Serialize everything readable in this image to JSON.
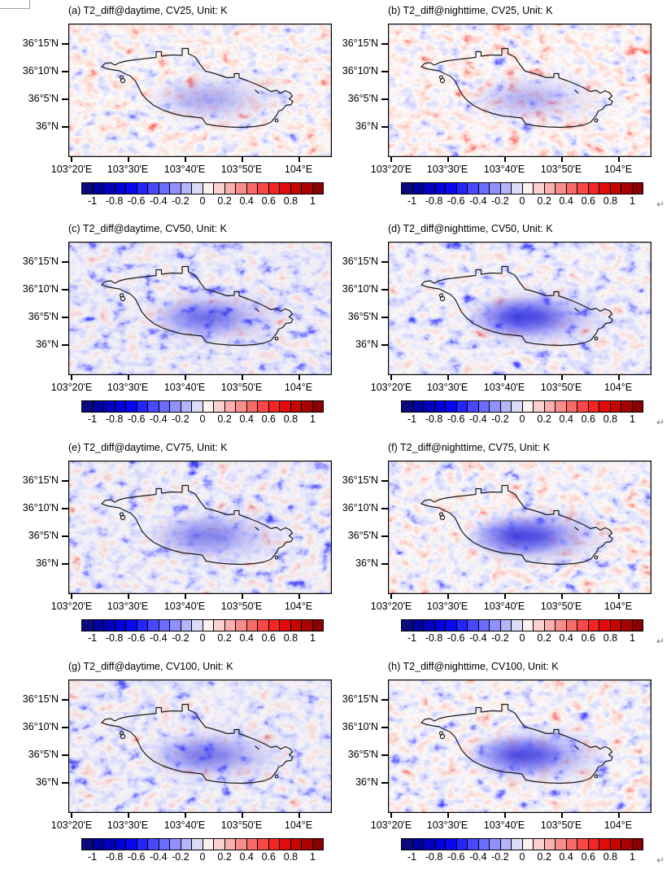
{
  "figure": {
    "panels": [
      {
        "id": "a",
        "title": "(a) T2_diff@daytime, CV25, Unit: K"
      },
      {
        "id": "b",
        "title": "(b) T2_diff@nighttime, CV25, Unit: K"
      },
      {
        "id": "c",
        "title": "(c) T2_diff@daytime, CV50, Unit: K"
      },
      {
        "id": "d",
        "title": "(d) T2_diff@nighttime, CV50, Unit: K"
      },
      {
        "id": "e",
        "title": "(e) T2_diff@daytime, CV75, Unit: K"
      },
      {
        "id": "f",
        "title": "(f) T2_diff@nighttime, CV75, Unit: K"
      },
      {
        "id": "g",
        "title": "(g) T2_diff@daytime, CV100, Unit: K"
      },
      {
        "id": "h",
        "title": "(h) T2_diff@nighttime, CV100, Unit: K"
      }
    ],
    "axes": {
      "y_ticks": [
        "36°15'N",
        "36°10'N",
        "36°5'N",
        "36°N"
      ],
      "x_ticks": [
        "103°20'E",
        "103°30'E",
        "103°40'E",
        "103°50'E",
        "104°E"
      ]
    },
    "colorbar": {
      "ticks": [
        "-1",
        "-0.8",
        "-0.6",
        "-0.4",
        "-0.2",
        "0",
        "0.2",
        "0.4",
        "0.6",
        "0.8",
        "1"
      ],
      "colors": [
        "#0a0a7d",
        "#0000a1",
        "#0000bd",
        "#0000d8",
        "#0707f2",
        "#2424ff",
        "#4848ff",
        "#6c6cff",
        "#9090ff",
        "#b5b5fa",
        "#dbdbf7",
        "#fdf0ee",
        "#fbd1cf",
        "#f9b0ae",
        "#f88e8c",
        "#f96b69",
        "#fa4846",
        "#f42523",
        "#e20b07",
        "#c60400",
        "#a80300",
        "#8b0000"
      ]
    },
    "marks": {
      "return_mark": "↵"
    },
    "colors": {
      "boundary": "#1a1a1a",
      "frame": "#000000",
      "return_mark_color": "#808080",
      "artifact_border": "#a0a0a0"
    }
  },
  "chart_data": {
    "type": "heatmap",
    "layout": "4 rows x 2 columns of filled-contour temperature-difference maps, each with its own horizontal colorbar",
    "x_axis": {
      "tick_labels": [
        "103°20'E",
        "103°30'E",
        "103°40'E",
        "103°50'E",
        "104°E"
      ],
      "range_deg_east": [
        103.33,
        104.1
      ]
    },
    "y_axis": {
      "tick_labels": [
        "36°15'N",
        "36°10'N",
        "36°5'N",
        "36°N"
      ],
      "range_deg_north": [
        35.92,
        36.31
      ]
    },
    "colorbar": {
      "unit": "K",
      "tick_values": [
        -1,
        -0.8,
        -0.6,
        -0.4,
        -0.2,
        0,
        0.2,
        0.4,
        0.6,
        0.8,
        1
      ],
      "contour_interval": 0.1,
      "n_segments": 22,
      "palette": "blue-white-red diverging"
    },
    "overlay": "black outline of the urban (city) boundary drawn in every panel",
    "subplots": [
      {
        "panel": "a",
        "title": "(a) T2_diff@daytime, CV25, Unit: K",
        "variable": "T2_diff",
        "period": "daytime",
        "scenario": "CV25",
        "unit": "K",
        "spatial_pattern": "Mostly near-zero; weak scattered cooling (-0.2 to -0.6 K) inside the boundary, strongest southeast of center; faint warming patch at northwest corner."
      },
      {
        "panel": "b",
        "title": "(b) T2_diff@nighttime, CV25, Unit: K",
        "variable": "T2_diff",
        "period": "nighttime",
        "scenario": "CV25",
        "unit": "K",
        "spatial_pattern": "Noisy mix of weak warming and cooling outside; moderate cooling band (-0.2 to -0.6 K) in the west-central part of the boundary; warming along western edge."
      },
      {
        "panel": "c",
        "title": "(c) T2_diff@daytime, CV50, Unit: K",
        "variable": "T2_diff",
        "period": "daytime",
        "scenario": "CV50",
        "unit": "K",
        "spatial_pattern": "Widespread light cooling across the whole domain; band of -0.4 to -0.8 K cooling along the center and east of the boundary."
      },
      {
        "panel": "d",
        "title": "(d) T2_diff@nighttime, CV50, Unit: K",
        "variable": "T2_diff",
        "period": "nighttime",
        "scenario": "CV50",
        "unit": "K",
        "spatial_pattern": "Strong coherent cooling (-0.4 to -1 K) filling the boundary interior; bluish speckle outside with scattered warming to the southwest."
      },
      {
        "panel": "e",
        "title": "(e) T2_diff@daytime, CV75, Unit: K",
        "variable": "T2_diff",
        "period": "daytime",
        "scenario": "CV75",
        "unit": "K",
        "spatial_pattern": "Light cooling domain-wide; moderate cooling (-0.2 to -0.6 K) through the central and southeastern boundary interior."
      },
      {
        "panel": "f",
        "title": "(f) T2_diff@nighttime, CV75, Unit: K",
        "variable": "T2_diff",
        "period": "nighttime",
        "scenario": "CV75",
        "unit": "K",
        "spatial_pattern": "Strong cooling core (-0.6 to -1 K) in the west-central boundary; warming patches along the western edge and a small warm spot inside to the east."
      },
      {
        "panel": "g",
        "title": "(g) T2_diff@daytime, CV100, Unit: K",
        "variable": "T2_diff",
        "period": "daytime",
        "scenario": "CV100",
        "unit": "K",
        "spatial_pattern": "Light cooling domain-wide; moderate cooling (-0.2 to -0.6 K) in the central/eastern boundary interior."
      },
      {
        "panel": "h",
        "title": "(h) T2_diff@nighttime, CV100, Unit: K",
        "variable": "T2_diff",
        "period": "nighttime",
        "scenario": "CV100",
        "unit": "K",
        "spatial_pattern": "Strong cooling (-0.4 to -1 K) across the boundary interior; reddish warming speckle outside to the south and west."
      }
    ]
  }
}
